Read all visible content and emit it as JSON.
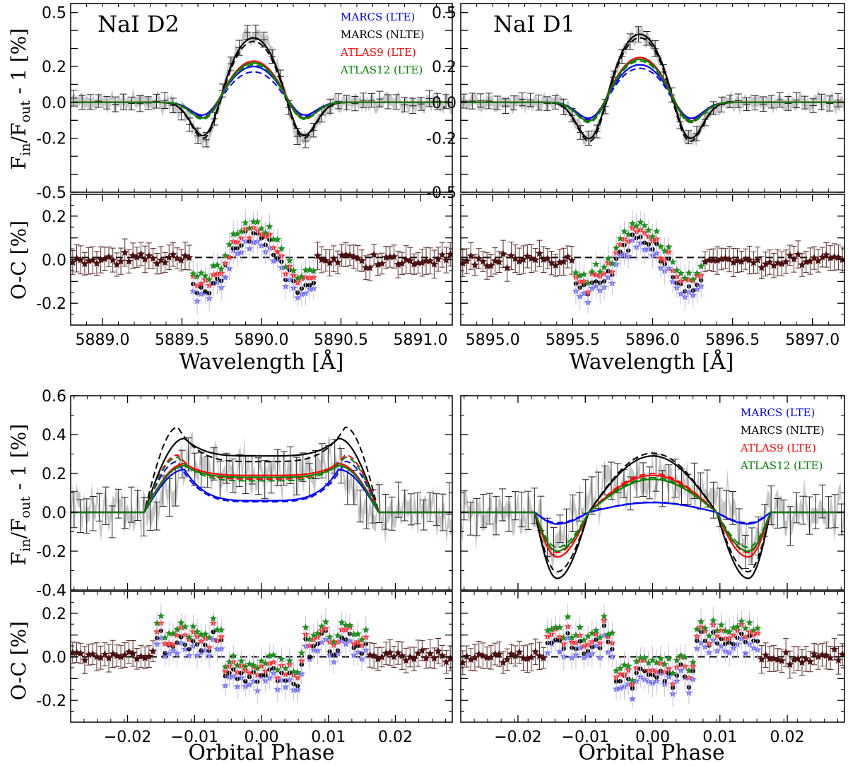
{
  "figure": {
    "main_ylabel": "F_in/F_out - 1 [%]",
    "resid_ylabel": "O-C [%]",
    "wave_xlabel": "Wavelength [Å]",
    "phase_xlabel": "Orbital Phase",
    "line_titles": [
      "NaI D2",
      "NaI D1"
    ]
  },
  "legend": [
    {
      "label": "MARCS (LTE)",
      "color": "#0000ff"
    },
    {
      "label": "MARCS (NLTE)",
      "color": "#000000"
    },
    {
      "label": "ATLAS9 (LTE)",
      "color": "#ff0000"
    },
    {
      "label": "ATLAS12 (LTE)",
      "color": "#008000"
    }
  ],
  "chart_data": [
    {
      "type": "line",
      "title": "NaI D2",
      "xlabel": "Wavelength [Å]",
      "ylabel": "F_in/F_out - 1 [%]",
      "xlim": [
        5888.8,
        5891.2
      ],
      "ylim": [
        -0.5,
        0.55
      ],
      "yticks": [
        0.5,
        0.4,
        0.3,
        0.2,
        0.1,
        0.0,
        -0.1,
        -0.2,
        -0.3,
        -0.4,
        -0.5
      ],
      "ytick_labels": [
        "0.5",
        "",
        "",
        "0.2",
        "",
        "0.0",
        "",
        "-0.2",
        "",
        "",
        "-0.5"
      ],
      "line_center": 5889.95,
      "series": [
        {
          "name": "MARCS (LTE)",
          "peak": 0.2,
          "dip": -0.1,
          "peak_dashed": 0.17
        },
        {
          "name": "MARCS (NLTE)",
          "peak": 0.36,
          "dip": -0.24,
          "peak_dashed": 0.34
        },
        {
          "name": "ATLAS9 (LTE)",
          "peak": 0.23,
          "dip": -0.12,
          "peak_dashed": 0.22
        },
        {
          "name": "ATLAS12 (LTE)",
          "peak": 0.22,
          "dip": -0.12,
          "peak_dashed": 0.21
        }
      ]
    },
    {
      "type": "scatter",
      "title": "",
      "xlabel": "Wavelength [Å]",
      "ylabel": "O-C [%]",
      "xlim": [
        5888.8,
        5891.2
      ],
      "ylim": [
        -0.3,
        0.3
      ],
      "xticks": [
        5889.0,
        5889.5,
        5890.0,
        5890.5,
        5891.0
      ],
      "xtick_labels": [
        "5889.0",
        "5889.5",
        "5890.0",
        "5890.5",
        "5891.0"
      ],
      "ytick_labels": [
        "0.2",
        "0.0",
        "-0.2"
      ]
    },
    {
      "type": "line",
      "title": "NaI D1",
      "xlabel": "Wavelength [Å]",
      "ylabel": "",
      "xlim": [
        5894.8,
        5897.2
      ],
      "ylim": [
        -0.5,
        0.55
      ],
      "line_center": 5895.92,
      "series": [
        {
          "name": "MARCS (LTE)",
          "peak": 0.21,
          "dip": -0.12,
          "peak_dashed": 0.19
        },
        {
          "name": "MARCS (NLTE)",
          "peak": 0.38,
          "dip": -0.26,
          "peak_dashed": 0.36
        },
        {
          "name": "ATLAS9 (LTE)",
          "peak": 0.25,
          "dip": -0.14,
          "peak_dashed": 0.24
        },
        {
          "name": "ATLAS12 (LTE)",
          "peak": 0.24,
          "dip": -0.14,
          "peak_dashed": 0.23
        }
      ]
    },
    {
      "type": "scatter",
      "title": "",
      "xlabel": "Wavelength [Å]",
      "ylabel": "",
      "xlim": [
        5894.8,
        5897.2
      ],
      "ylim": [
        -0.3,
        0.3
      ],
      "xticks": [
        5895.0,
        5895.5,
        5896.0,
        5896.5,
        5897.0
      ],
      "xtick_labels": [
        "5895.0",
        "5895.5",
        "5896.0",
        "5896.5",
        "5897.0"
      ]
    },
    {
      "type": "line",
      "title": "",
      "xlabel": "Orbital Phase",
      "ylabel": "F_in/F_out - 1 [%]",
      "xlim": [
        -0.0285,
        0.0285
      ],
      "ylim": [
        -0.4,
        0.6
      ],
      "ytick_labels": [
        "0.6",
        "0.4",
        "0.2",
        "0.0",
        "-0.2",
        "-0.4"
      ],
      "series": [
        {
          "name": "MARCS (LTE)",
          "edge": 0.22,
          "center": 0.06
        },
        {
          "name": "MARCS (NLTE)",
          "edge": 0.38,
          "center": 0.29
        },
        {
          "name": "ATLAS9 (LTE)",
          "edge": 0.25,
          "center": 0.19
        },
        {
          "name": "ATLAS12 (LTE)",
          "edge": 0.24,
          "center": 0.18
        }
      ]
    },
    {
      "type": "scatter",
      "title": "",
      "xlabel": "Orbital Phase",
      "ylabel": "O-C [%]",
      "xlim": [
        -0.0285,
        0.0285
      ],
      "ylim": [
        -0.3,
        0.3
      ],
      "xticks": [
        -0.02,
        -0.01,
        0.0,
        0.01,
        0.02
      ],
      "xtick_labels": [
        "−0.02",
        "−0.01",
        "0.00",
        "0.01",
        "0.02"
      ]
    },
    {
      "type": "line",
      "title": "",
      "xlabel": "Orbital Phase",
      "ylabel": "",
      "xlim": [
        -0.0285,
        0.0285
      ],
      "ylim": [
        -0.4,
        0.6
      ],
      "series": [
        {
          "name": "MARCS (LTE)",
          "dip": -0.06,
          "center": 0.05
        },
        {
          "name": "MARCS (NLTE)",
          "dip": -0.34,
          "center": 0.29
        },
        {
          "name": "ATLAS9 (LTE)",
          "dip": -0.23,
          "center": 0.19
        },
        {
          "name": "ATLAS12 (LTE)",
          "dip": -0.2,
          "center": 0.17
        }
      ]
    },
    {
      "type": "scatter",
      "title": "",
      "xlabel": "Orbital Phase",
      "ylabel": "",
      "xlim": [
        -0.0285,
        0.0285
      ],
      "ylim": [
        -0.3,
        0.3
      ],
      "xticks": [
        -0.02,
        -0.01,
        0.0,
        0.01,
        0.02
      ],
      "xtick_labels": [
        "−0.02",
        "−0.01",
        "0.00",
        "0.01",
        "0.02"
      ]
    }
  ]
}
